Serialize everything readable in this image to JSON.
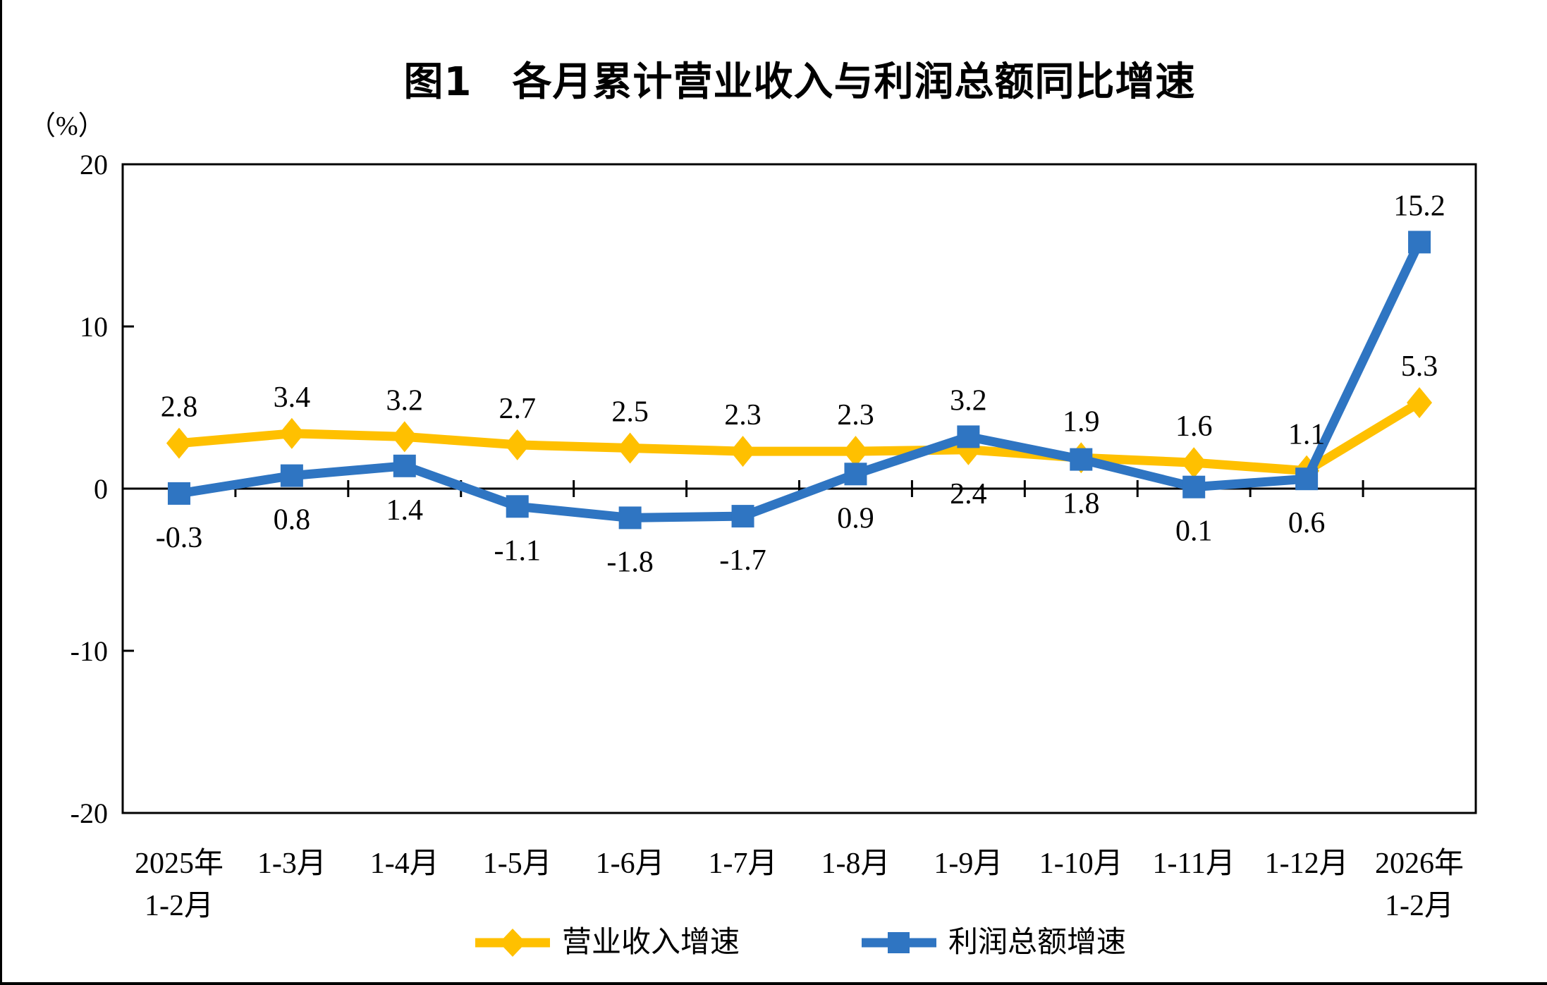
{
  "figure": {
    "title": "图1　各月累计营业收入与利润总额同比增速",
    "unit_label": "（%）"
  },
  "chart_data": {
    "type": "line",
    "title": "图1　各月累计营业收入与利润总额同比增速",
    "ylabel": "（%）",
    "legend_position": "bottom",
    "grid": "zero-line-only",
    "categories": [
      "2025年\n1-2月",
      "1-3月",
      "1-4月",
      "1-5月",
      "1-6月",
      "1-7月",
      "1-8月",
      "1-9月",
      "1-10月",
      "1-11月",
      "1-12月",
      "2026年\n1-2月"
    ],
    "y_axis": {
      "min": -20,
      "max": 20,
      "ticks": [
        {
          "value": 20,
          "label": "20"
        },
        {
          "value": 10,
          "label": "10"
        },
        {
          "value": 0,
          "label": "0"
        },
        {
          "value": -10,
          "label": "-10"
        },
        {
          "value": -20,
          "label": "-20"
        }
      ]
    },
    "series": [
      {
        "id": "revenue",
        "name": "营业收入增速",
        "color": "#FFC000",
        "marker": "diamond",
        "values": [
          2.8,
          3.4,
          3.2,
          2.7,
          2.5,
          2.3,
          2.3,
          2.4,
          1.9,
          1.6,
          1.1,
          5.3
        ],
        "labels": [
          "2.8",
          "3.4",
          "3.2",
          "2.7",
          "2.5",
          "2.3",
          "2.3",
          "2.4",
          "1.9",
          "1.6",
          "1.1",
          "5.3"
        ],
        "label_side": [
          "above",
          "above",
          "above",
          "above",
          "above",
          "above",
          "above",
          "below",
          "above",
          "above",
          "above",
          "above"
        ]
      },
      {
        "id": "profit",
        "name": "利润总额增速",
        "color": "#2F75C2",
        "marker": "square",
        "values": [
          -0.3,
          0.8,
          1.4,
          -1.1,
          -1.8,
          -1.7,
          0.9,
          3.2,
          1.8,
          0.1,
          0.6,
          15.2
        ],
        "labels": [
          "-0.3",
          "0.8",
          "1.4",
          "-1.1",
          "-1.8",
          "-1.7",
          "0.9",
          "3.2",
          "1.8",
          "0.1",
          "0.6",
          "15.2"
        ],
        "label_side": [
          "below",
          "below",
          "below",
          "below",
          "below",
          "below",
          "below",
          "above",
          "below",
          "below",
          "below",
          "above"
        ]
      }
    ]
  }
}
